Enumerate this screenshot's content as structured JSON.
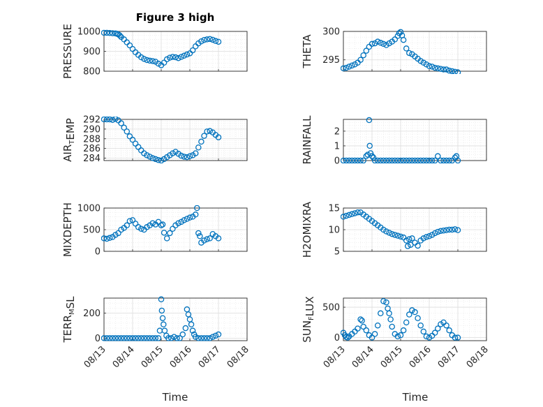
{
  "figure": {
    "title": "Figure 3 high",
    "xlabel": "Time",
    "marker_color": "#0072BD"
  },
  "chart_data": [
    {
      "type": "scatter",
      "ylabel": [
        {
          "t": "PRESSURE"
        }
      ],
      "ylim": [
        800,
        1000
      ],
      "yticks": [
        800,
        900,
        1000
      ],
      "yticklabels": [
        "800",
        "900",
        "1000"
      ],
      "xlim": [
        "08/13",
        "08/18"
      ],
      "xticks": [
        "08/13",
        "08/14",
        "08/15",
        "08/16",
        "08/17",
        "08/18"
      ],
      "show_xticklabels": false,
      "grid": true,
      "x_days": [
        0,
        0.1,
        0.2,
        0.3,
        0.4,
        0.45,
        0.5,
        0.55,
        0.6,
        0.7,
        0.8,
        0.9,
        1.0,
        1.1,
        1.2,
        1.3,
        1.4,
        1.5,
        1.6,
        1.7,
        1.8,
        1.9,
        2.0,
        2.1,
        2.2,
        2.3,
        2.4,
        2.5,
        2.6,
        2.7,
        2.8,
        2.9,
        3.0,
        3.1,
        3.2,
        3.3,
        3.4,
        3.5,
        3.6,
        3.7,
        3.8,
        3.9,
        4.0
      ],
      "y": [
        993,
        993,
        992,
        991,
        990,
        988,
        985,
        980,
        972,
        960,
        945,
        930,
        912,
        895,
        882,
        870,
        862,
        856,
        853,
        851,
        848,
        838,
        830,
        843,
        860,
        868,
        872,
        870,
        866,
        872,
        878,
        884,
        890,
        905,
        925,
        940,
        950,
        957,
        960,
        962,
        958,
        952,
        948
      ]
    },
    {
      "type": "scatter",
      "ylabel": [
        {
          "t": "THETA"
        }
      ],
      "ylim": [
        293,
        300
      ],
      "yticks": [
        295,
        300
      ],
      "yticklabels": [
        "295",
        "300"
      ],
      "xlim": [
        "08/13",
        "08/18"
      ],
      "xticks": [
        "08/13",
        "08/14",
        "08/15",
        "08/16",
        "08/17",
        "08/18"
      ],
      "show_xticklabels": false,
      "grid": true,
      "x_days": [
        0,
        0.1,
        0.2,
        0.3,
        0.4,
        0.5,
        0.6,
        0.7,
        0.8,
        0.9,
        1.0,
        1.1,
        1.2,
        1.3,
        1.4,
        1.5,
        1.6,
        1.7,
        1.8,
        1.9,
        1.95,
        2.0,
        2.05,
        2.1,
        2.2,
        2.3,
        2.4,
        2.5,
        2.6,
        2.7,
        2.8,
        2.9,
        3.0,
        3.1,
        3.2,
        3.3,
        3.4,
        3.5,
        3.6,
        3.7,
        3.8,
        3.9,
        4.0
      ],
      "y": [
        293.5,
        293.6,
        293.8,
        294.0,
        294.2,
        294.5,
        295.0,
        295.8,
        296.6,
        297.3,
        297.8,
        297.9,
        298.2,
        298.0,
        297.8,
        297.6,
        297.9,
        298.2,
        298.6,
        299.2,
        299.7,
        299.9,
        299.3,
        298.5,
        297.0,
        296.2,
        296.0,
        295.6,
        295.2,
        294.8,
        294.5,
        294.2,
        293.9,
        293.8,
        293.6,
        293.5,
        293.4,
        293.3,
        293.3,
        293.1,
        293.0,
        292.9,
        292.8
      ]
    },
    {
      "type": "scatter",
      "ylabel": [
        {
          "t": "AIR"
        },
        {
          "t": "T",
          "sub": true
        },
        {
          "t": "EMP"
        }
      ],
      "ylim": [
        283.5,
        292
      ],
      "yticks": [
        284,
        286,
        288,
        290,
        292
      ],
      "yticklabels": [
        "284",
        "286",
        "288",
        "290",
        "292"
      ],
      "xlim": [
        "08/13",
        "08/18"
      ],
      "xticks": [
        "08/13",
        "08/14",
        "08/15",
        "08/16",
        "08/17",
        "08/18"
      ],
      "show_xticklabels": false,
      "grid": true,
      "x_days": [
        0,
        0.1,
        0.2,
        0.3,
        0.4,
        0.5,
        0.6,
        0.7,
        0.8,
        0.9,
        1.0,
        1.1,
        1.2,
        1.3,
        1.4,
        1.5,
        1.6,
        1.7,
        1.8,
        1.9,
        2.0,
        2.1,
        2.2,
        2.3,
        2.4,
        2.5,
        2.6,
        2.7,
        2.8,
        2.9,
        3.0,
        3.1,
        3.2,
        3.3,
        3.4,
        3.5,
        3.6,
        3.7,
        3.8,
        3.9,
        4.0
      ],
      "y": [
        292.0,
        292.0,
        292.0,
        291.9,
        292.1,
        291.8,
        291.2,
        290.3,
        289.5,
        288.5,
        287.8,
        287.0,
        286.3,
        285.6,
        285.0,
        284.6,
        284.3,
        284.0,
        283.8,
        283.6,
        283.5,
        283.8,
        284.2,
        284.6,
        285.0,
        285.3,
        284.9,
        284.5,
        284.3,
        284.2,
        284.4,
        284.6,
        285.0,
        286.2,
        287.4,
        288.6,
        289.5,
        289.6,
        289.3,
        288.8,
        288.3
      ]
    },
    {
      "type": "scatter",
      "ylabel": [
        {
          "t": "RAINFALL"
        }
      ],
      "ylim": [
        0,
        2.8
      ],
      "yticks": [
        0,
        1,
        2
      ],
      "yticklabels": [
        "0",
        "1",
        "2"
      ],
      "xlim": [
        "08/13",
        "08/18"
      ],
      "xticks": [
        "08/13",
        "08/14",
        "08/15",
        "08/16",
        "08/17",
        "08/18"
      ],
      "show_xticklabels": false,
      "grid": true,
      "x_days": [
        0,
        0.1,
        0.2,
        0.3,
        0.4,
        0.5,
        0.6,
        0.7,
        0.8,
        0.85,
        0.9,
        0.92,
        0.95,
        1.0,
        1.05,
        1.1,
        1.2,
        1.3,
        1.4,
        1.5,
        1.6,
        1.7,
        1.8,
        1.9,
        2.0,
        2.1,
        2.2,
        2.3,
        2.4,
        2.5,
        2.6,
        2.7,
        2.8,
        2.9,
        3.0,
        3.1,
        3.2,
        3.3,
        3.4,
        3.5,
        3.6,
        3.7,
        3.8,
        3.9,
        3.95,
        4.0
      ],
      "y": [
        0,
        0,
        0,
        0,
        0,
        0,
        0,
        0,
        0.3,
        0.4,
        2.75,
        1.0,
        0.5,
        0.3,
        0.2,
        0,
        0,
        0,
        0,
        0,
        0,
        0,
        0,
        0,
        0,
        0,
        0,
        0,
        0,
        0,
        0,
        0,
        0,
        0,
        0,
        0,
        0,
        0.3,
        0,
        0,
        0,
        0,
        0,
        0.2,
        0.3,
        0
      ]
    },
    {
      "type": "scatter",
      "ylabel": [
        {
          "t": "MIXDEPTH"
        }
      ],
      "ylim": [
        0,
        1000
      ],
      "yticks": [
        0,
        500,
        1000
      ],
      "yticklabels": [
        "0",
        "500",
        "1000"
      ],
      "xlim": [
        "08/13",
        "08/18"
      ],
      "xticks": [
        "08/13",
        "08/14",
        "08/15",
        "08/16",
        "08/17",
        "08/18"
      ],
      "show_xticklabels": false,
      "grid": true,
      "x_days": [
        0,
        0.1,
        0.2,
        0.3,
        0.4,
        0.5,
        0.6,
        0.7,
        0.8,
        0.9,
        1.0,
        1.1,
        1.2,
        1.3,
        1.4,
        1.5,
        1.6,
        1.7,
        1.8,
        1.9,
        2.0,
        2.05,
        2.1,
        2.2,
        2.3,
        2.4,
        2.5,
        2.6,
        2.7,
        2.8,
        2.9,
        3.0,
        3.1,
        3.2,
        3.25,
        3.3,
        3.35,
        3.4,
        3.5,
        3.6,
        3.7,
        3.8,
        3.9,
        4.0
      ],
      "y": [
        300,
        290,
        310,
        330,
        380,
        420,
        500,
        540,
        600,
        700,
        720,
        640,
        560,
        520,
        500,
        560,
        600,
        650,
        620,
        680,
        600,
        620,
        430,
        300,
        420,
        520,
        600,
        650,
        680,
        720,
        750,
        780,
        800,
        850,
        1000,
        420,
        350,
        200,
        250,
        280,
        300,
        400,
        350,
        300
      ]
    },
    {
      "type": "scatter",
      "ylabel": [
        {
          "t": "H2OMIXRA"
        }
      ],
      "ylim": [
        5,
        15
      ],
      "yticks": [
        5,
        10,
        15
      ],
      "yticklabels": [
        "5",
        "10",
        "15"
      ],
      "xlim": [
        "08/13",
        "08/18"
      ],
      "xticks": [
        "08/13",
        "08/14",
        "08/15",
        "08/16",
        "08/17",
        "08/18"
      ],
      "show_xticklabels": false,
      "grid": true,
      "x_days": [
        0,
        0.1,
        0.2,
        0.3,
        0.4,
        0.5,
        0.6,
        0.7,
        0.8,
        0.9,
        1.0,
        1.1,
        1.2,
        1.3,
        1.4,
        1.5,
        1.6,
        1.7,
        1.8,
        1.9,
        2.0,
        2.1,
        2.2,
        2.25,
        2.3,
        2.35,
        2.4,
        2.5,
        2.6,
        2.7,
        2.8,
        2.9,
        3.0,
        3.1,
        3.2,
        3.3,
        3.4,
        3.5,
        3.6,
        3.7,
        3.8,
        3.9,
        4.0
      ],
      "y": [
        13.0,
        13.2,
        13.4,
        13.6,
        13.8,
        14.0,
        14.0,
        13.5,
        13.0,
        12.5,
        12.0,
        11.5,
        11.0,
        10.5,
        10.0,
        9.6,
        9.3,
        9.0,
        8.8,
        8.6,
        8.4,
        8.2,
        7.5,
        6.2,
        7.8,
        6.5,
        8.0,
        7.0,
        6.3,
        7.5,
        8.0,
        8.3,
        8.5,
        8.8,
        9.2,
        9.5,
        9.7,
        9.8,
        9.9,
        10.0,
        10.0,
        10.1,
        9.9
      ]
    },
    {
      "type": "scatter",
      "ylabel": [
        {
          "t": "TERR"
        },
        {
          "t": "M",
          "sub": true
        },
        {
          "t": "SL"
        }
      ],
      "ylim": [
        -20,
        320
      ],
      "yticks": [
        0,
        200
      ],
      "yticklabels": [
        "0",
        "200"
      ],
      "xlim": [
        "08/13",
        "08/18"
      ],
      "xticks": [
        "08/13",
        "08/14",
        "08/15",
        "08/16",
        "08/17",
        "08/18"
      ],
      "show_xticklabels": true,
      "grid": true,
      "x_days": [
        0,
        0.1,
        0.2,
        0.3,
        0.4,
        0.5,
        0.6,
        0.7,
        0.8,
        0.9,
        1.0,
        1.1,
        1.2,
        1.3,
        1.4,
        1.5,
        1.6,
        1.7,
        1.8,
        1.9,
        1.95,
        2.0,
        2.02,
        2.05,
        2.08,
        2.12,
        2.18,
        2.25,
        2.35,
        2.45,
        2.55,
        2.65,
        2.75,
        2.85,
        2.9,
        2.95,
        3.0,
        3.05,
        3.1,
        3.15,
        3.2,
        3.3,
        3.4,
        3.5,
        3.6,
        3.7,
        3.8,
        3.9,
        4.0
      ],
      "y": [
        0,
        0,
        0,
        0,
        0,
        0,
        0,
        0,
        0,
        0,
        0,
        0,
        0,
        0,
        0,
        0,
        0,
        0,
        0,
        0,
        60,
        310,
        220,
        160,
        110,
        60,
        20,
        0,
        0,
        10,
        0,
        0,
        30,
        80,
        230,
        190,
        150,
        110,
        60,
        30,
        10,
        0,
        0,
        0,
        0,
        0,
        10,
        20,
        30
      ]
    },
    {
      "type": "scatter",
      "ylabel": [
        {
          "t": "SUN"
        },
        {
          "t": "F",
          "sub": true
        },
        {
          "t": "LUX"
        }
      ],
      "ylim": [
        -50,
        650
      ],
      "yticks": [
        0,
        500
      ],
      "yticklabels": [
        "0",
        "500"
      ],
      "xlim": [
        "08/13",
        "08/18"
      ],
      "xticks": [
        "08/13",
        "08/14",
        "08/15",
        "08/16",
        "08/17",
        "08/18"
      ],
      "show_xticklabels": true,
      "grid": true,
      "x_days": [
        0,
        0.05,
        0.1,
        0.15,
        0.2,
        0.3,
        0.4,
        0.5,
        0.6,
        0.65,
        0.7,
        0.8,
        0.9,
        1.0,
        1.1,
        1.2,
        1.3,
        1.4,
        1.5,
        1.55,
        1.6,
        1.65,
        1.7,
        1.8,
        1.9,
        2.0,
        2.1,
        2.2,
        2.3,
        2.4,
        2.5,
        2.6,
        2.7,
        2.8,
        2.9,
        3.0,
        3.1,
        3.2,
        3.3,
        3.4,
        3.5,
        3.6,
        3.7,
        3.8,
        3.9,
        4.0
      ],
      "y": [
        80,
        40,
        10,
        0,
        20,
        60,
        100,
        150,
        300,
        280,
        180,
        120,
        40,
        0,
        60,
        200,
        400,
        600,
        580,
        480,
        400,
        300,
        180,
        60,
        20,
        40,
        120,
        250,
        380,
        450,
        420,
        320,
        200,
        100,
        20,
        0,
        30,
        80,
        150,
        220,
        250,
        200,
        120,
        40,
        0,
        0
      ]
    }
  ]
}
